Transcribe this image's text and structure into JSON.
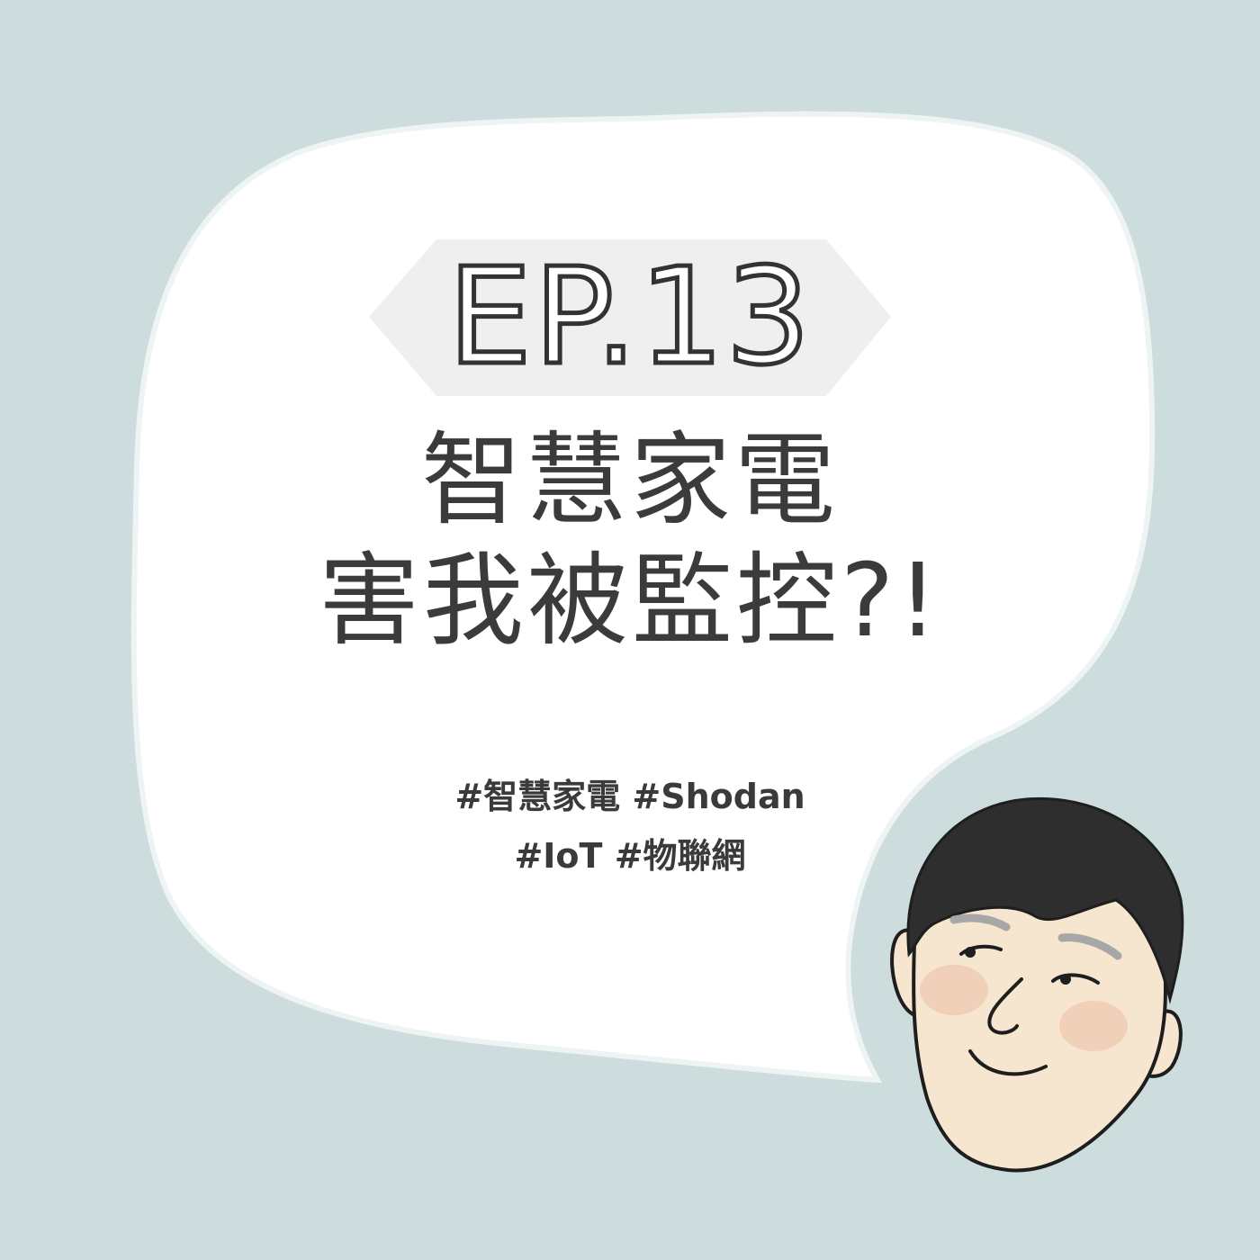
{
  "episode_label": "EP.13",
  "title": {
    "line1": "智慧家電",
    "line2": "害我被監控?!"
  },
  "hashtags": {
    "line1": "#智慧家電 #Shodan",
    "line2": "#IoT #物聯網"
  },
  "colors": {
    "background": "#cddcdc",
    "bubble": "#ffffff",
    "label_banner": "#efefef",
    "text": "#3b3b3b",
    "hair": "#2e2e2e",
    "skin": "#f6e6cf",
    "cheek": "#f0cbb3"
  },
  "icons": {
    "character": "cartoon-man-face-icon"
  }
}
